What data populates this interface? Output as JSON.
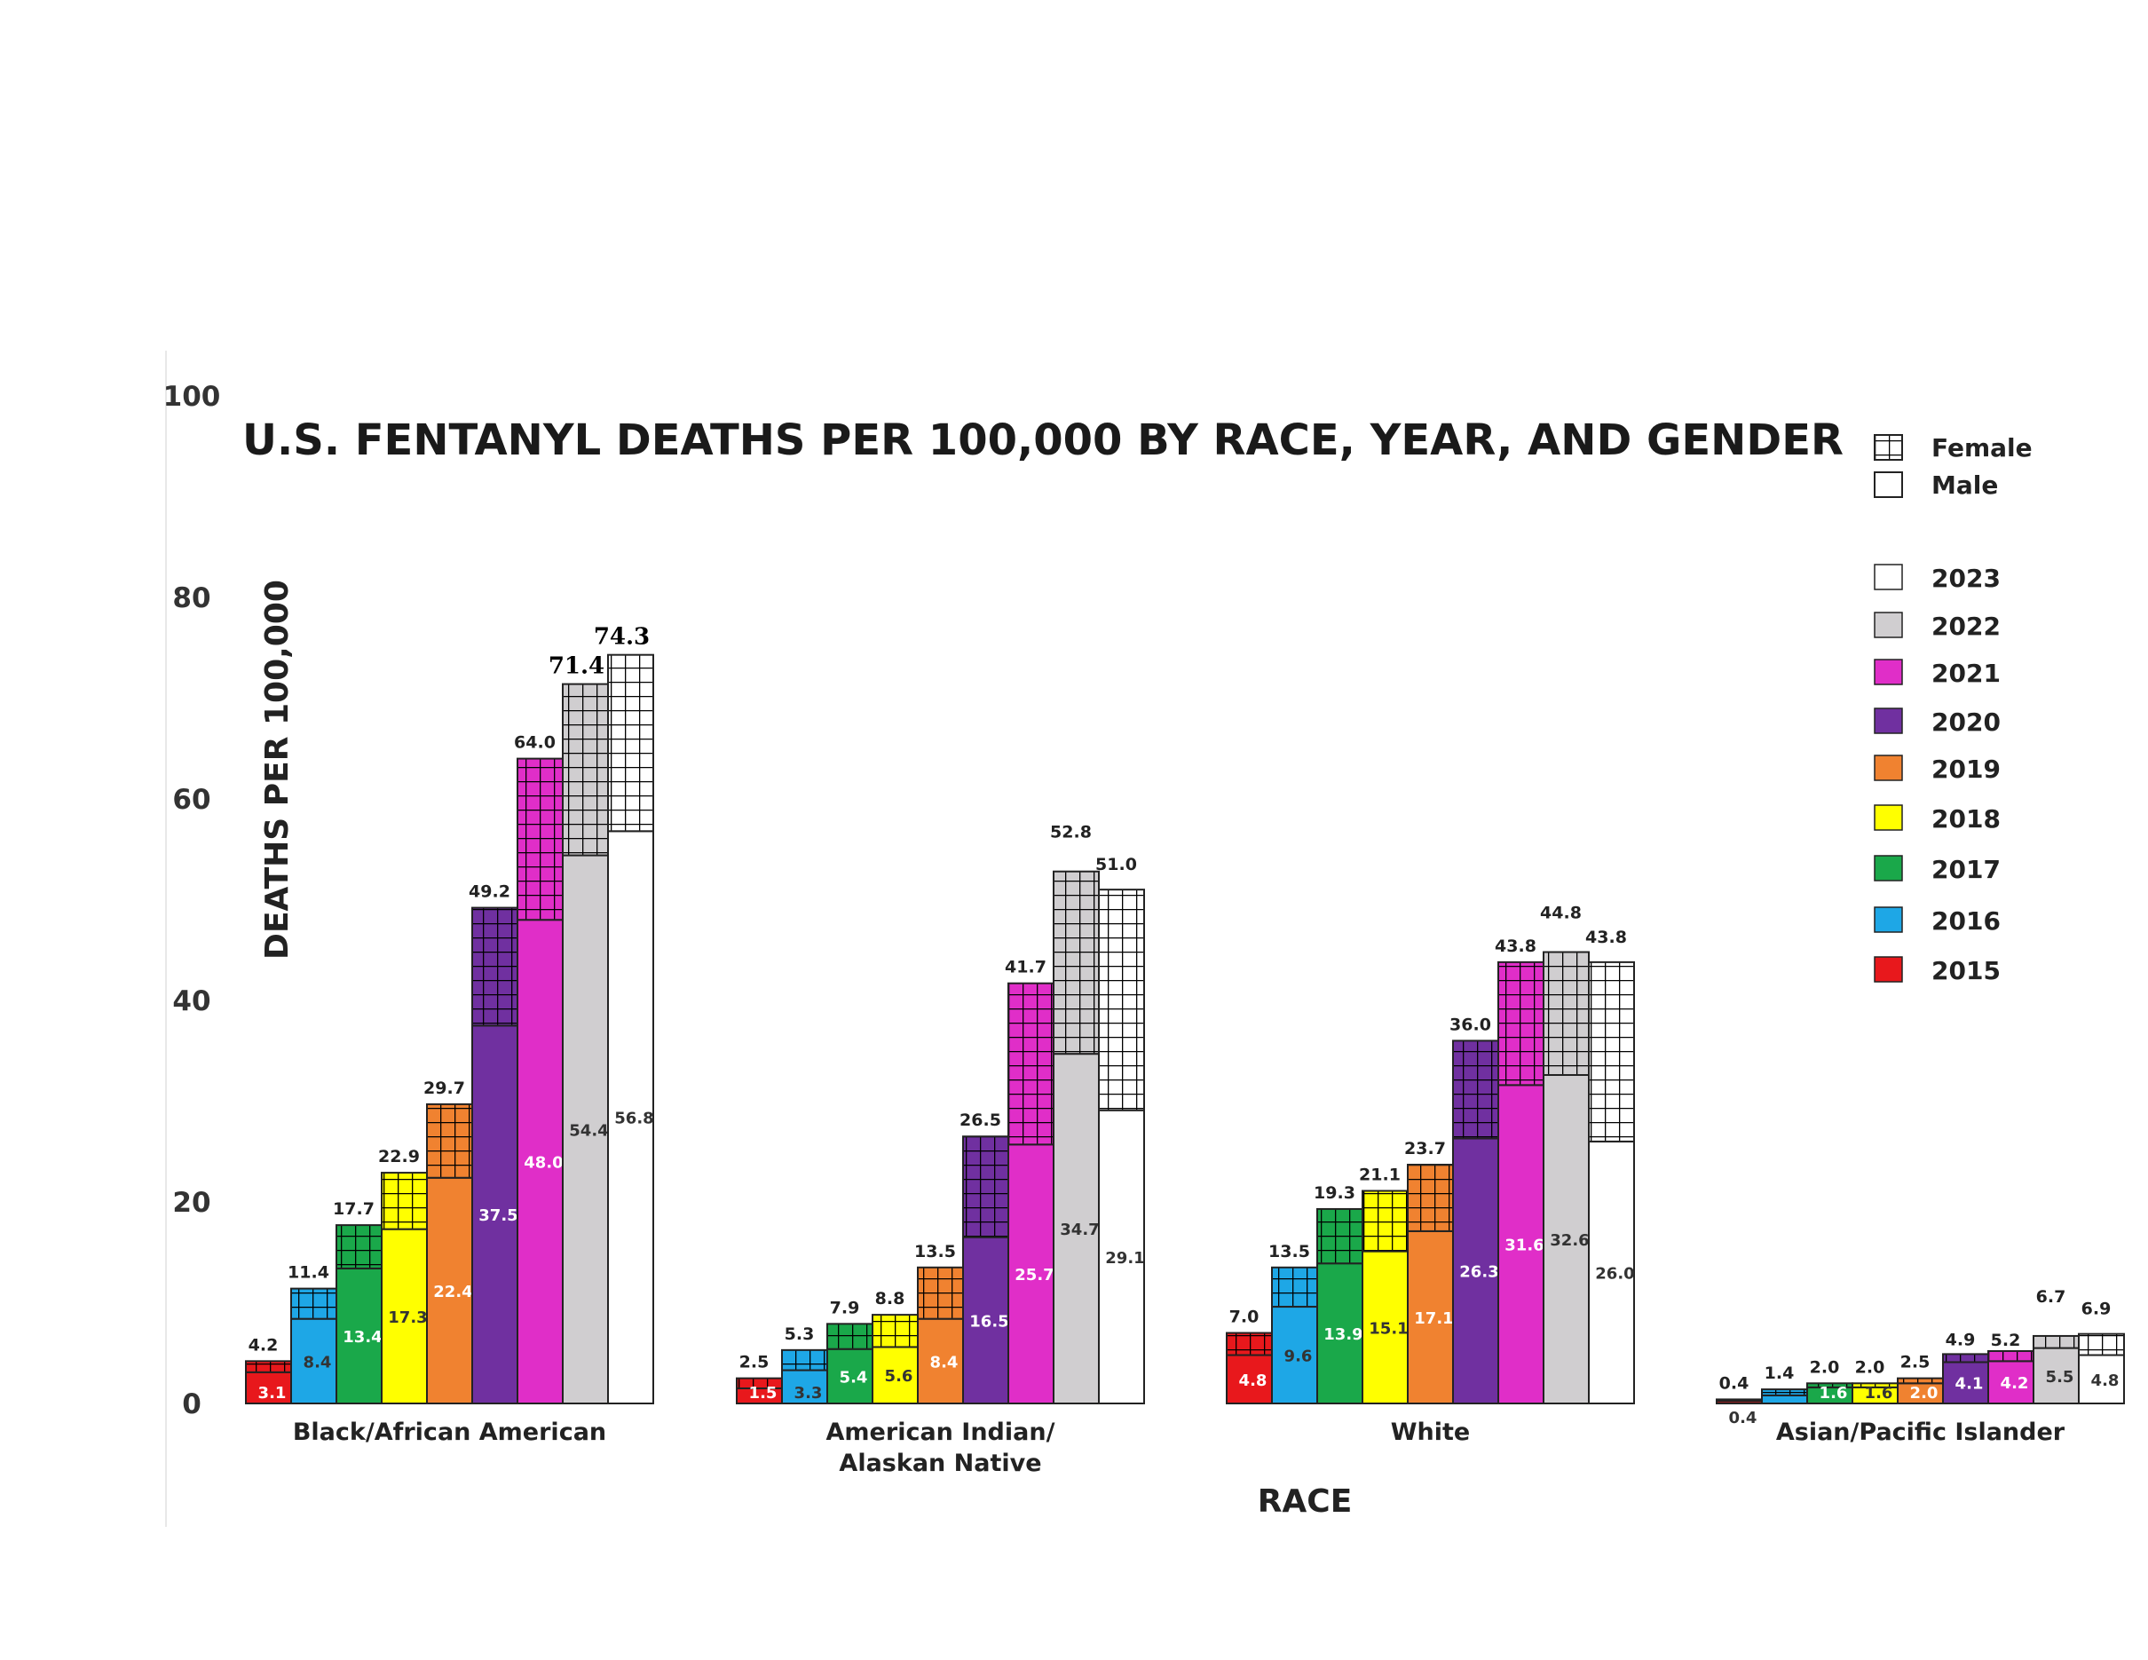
{
  "chart_data": {
    "type": "bar",
    "title": "U.S. FENTANYL DEATHS PER 100,000 BY RACE, YEAR, AND GENDER",
    "xlabel": "RACE",
    "ylabel": "DEATHS PER 100,000",
    "ylim": [
      0,
      100
    ],
    "yticks": [
      "0",
      "20",
      "40",
      "60",
      "80",
      "100"
    ],
    "categories": [
      {
        "lines": [
          "Black/African American"
        ]
      },
      {
        "lines": [
          "American Indian/",
          "Alaskan Native"
        ]
      },
      {
        "lines": [
          "White"
        ]
      },
      {
        "lines": [
          "Asian/Pacific Islander"
        ]
      }
    ],
    "years": [
      "2015",
      "2016",
      "2017",
      "2018",
      "2019",
      "2020",
      "2021",
      "2022",
      "2023"
    ],
    "series": [
      {
        "name": "2015",
        "color": "#e8181c",
        "totals": [
          4.2,
          2.5,
          7.0,
          0.4
        ],
        "male": [
          3.1,
          1.5,
          4.8,
          0.4
        ],
        "total_labels": [
          "4.2",
          "2.5",
          "7.0",
          "0.4"
        ],
        "male_labels": [
          "3.1",
          "1.5",
          "4.8",
          "0.4"
        ]
      },
      {
        "name": "2016",
        "color": "#1ea7e6",
        "totals": [
          11.4,
          5.3,
          13.5,
          1.4
        ],
        "male": [
          8.4,
          3.3,
          9.6,
          0.8
        ],
        "total_labels": [
          "11.4",
          "5.3",
          "13.5",
          "1.4"
        ],
        "male_labels": [
          "8.4",
          "3.3",
          "9.6",
          ""
        ]
      },
      {
        "name": "2017",
        "color": "#1aa84a",
        "totals": [
          17.7,
          7.9,
          19.3,
          2.0
        ],
        "male": [
          13.4,
          5.4,
          13.9,
          1.6
        ],
        "total_labels": [
          "17.7",
          "7.9",
          "19.3",
          "2.0"
        ],
        "male_labels": [
          "13.4",
          "5.4",
          "13.9",
          "1.6"
        ]
      },
      {
        "name": "2018",
        "color": "#ffff00",
        "totals": [
          22.9,
          8.8,
          21.1,
          2.0
        ],
        "male": [
          17.3,
          5.6,
          15.1,
          1.6
        ],
        "total_labels": [
          "22.9",
          "8.8",
          "21.1",
          "2.0"
        ],
        "male_labels": [
          "17.3",
          "5.6",
          "15.1",
          "1.6"
        ]
      },
      {
        "name": "2019",
        "color": "#f08230",
        "totals": [
          29.7,
          13.5,
          23.7,
          2.5
        ],
        "male": [
          22.4,
          8.4,
          17.1,
          2.0
        ],
        "total_labels": [
          "29.7",
          "13.5",
          "23.7",
          "2.5"
        ],
        "male_labels": [
          "22.4",
          "8.4",
          "17.1",
          "2.0"
        ]
      },
      {
        "name": "2020",
        "color": "#7030a0",
        "totals": [
          49.2,
          26.5,
          36.0,
          4.9
        ],
        "male": [
          37.5,
          16.5,
          26.3,
          4.1
        ],
        "total_labels": [
          "49.2",
          "26.5",
          "36.0",
          "4.9"
        ],
        "male_labels": [
          "37.5",
          "16.5",
          "26.3",
          "4.1"
        ]
      },
      {
        "name": "2021",
        "color": "#e02ec8",
        "totals": [
          64.0,
          41.7,
          43.8,
          5.2
        ],
        "male": [
          48.0,
          25.7,
          31.6,
          4.2
        ],
        "total_labels": [
          "64.0",
          "41.7",
          "43.8",
          "5.2"
        ],
        "male_labels": [
          "48.0",
          "25.7",
          "31.6",
          "4.2"
        ]
      },
      {
        "name": "2022",
        "color": "#d0ced0",
        "totals": [
          71.4,
          52.8,
          44.8,
          6.7
        ],
        "male": [
          54.4,
          34.7,
          32.6,
          5.5
        ],
        "total_labels": [
          "71.4",
          "52.8",
          "44.8",
          "6.7"
        ],
        "male_labels": [
          "54.4",
          "34.7",
          "32.6",
          "5.5"
        ]
      },
      {
        "name": "2023",
        "color": "#ffffff",
        "totals": [
          74.3,
          51.0,
          43.8,
          6.9
        ],
        "male": [
          56.8,
          29.1,
          26.0,
          4.8
        ],
        "total_labels": [
          "74.3",
          "51.0",
          "43.8",
          "6.9"
        ],
        "male_labels": [
          "56.8",
          "29.1",
          "26.0",
          "4.8"
        ]
      }
    ],
    "legend": {
      "position": "right",
      "gender": [
        "Female",
        "Male"
      ],
      "years_order": [
        "2023",
        "2022",
        "2021",
        "2020",
        "2019",
        "2018",
        "2017",
        "2016",
        "2015"
      ]
    },
    "grid": false
  }
}
